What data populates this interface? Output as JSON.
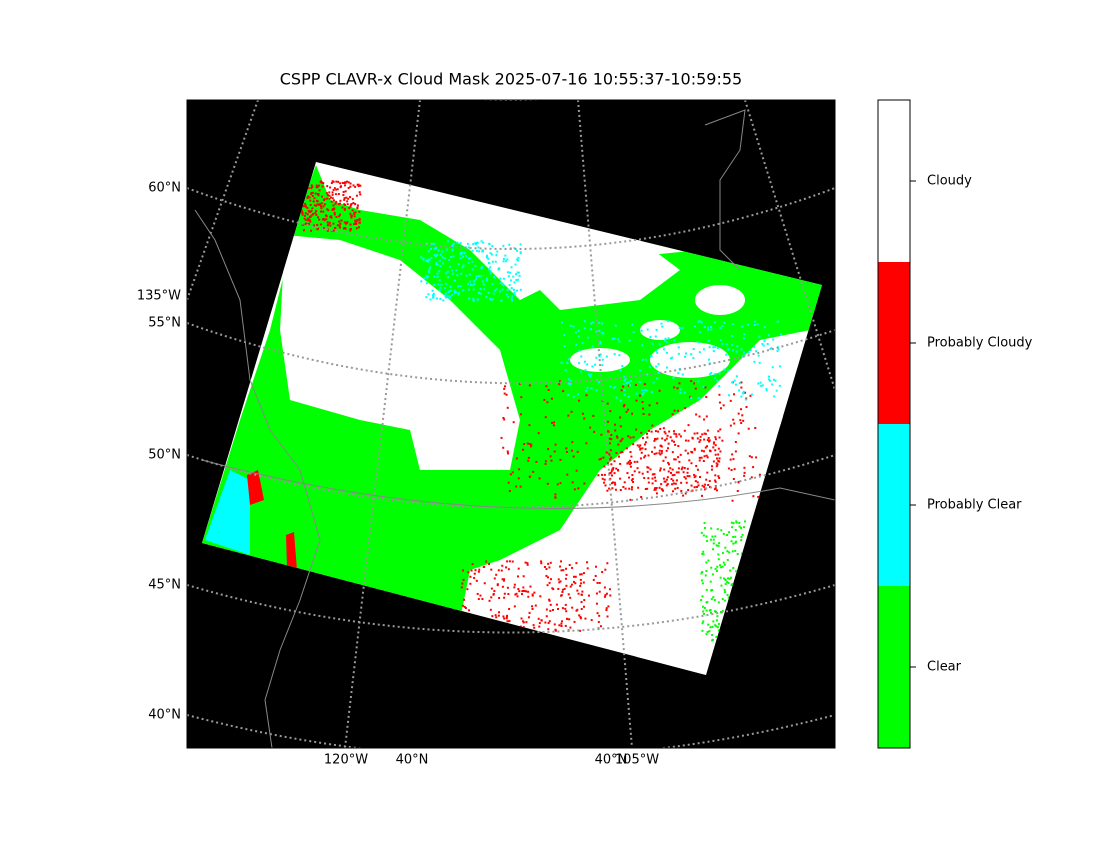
{
  "title": "CSPP CLAVR-x Cloud Mask 2025-07-16 10:55:37-10:59:55",
  "lat_labels": [
    "60°N",
    "135°W",
    "55°N",
    "50°N",
    "45°N",
    "40°N"
  ],
  "lon_labels": [
    "120°W",
    "40°N",
    "40°N",
    "105°W"
  ],
  "colorbar": {
    "labels": [
      "Cloudy",
      "Probably Cloudy",
      "Probably Clear",
      "Clear"
    ],
    "colors": [
      "#ffffff",
      "#ff0000",
      "#00ffff",
      "#00ff00"
    ]
  }
}
